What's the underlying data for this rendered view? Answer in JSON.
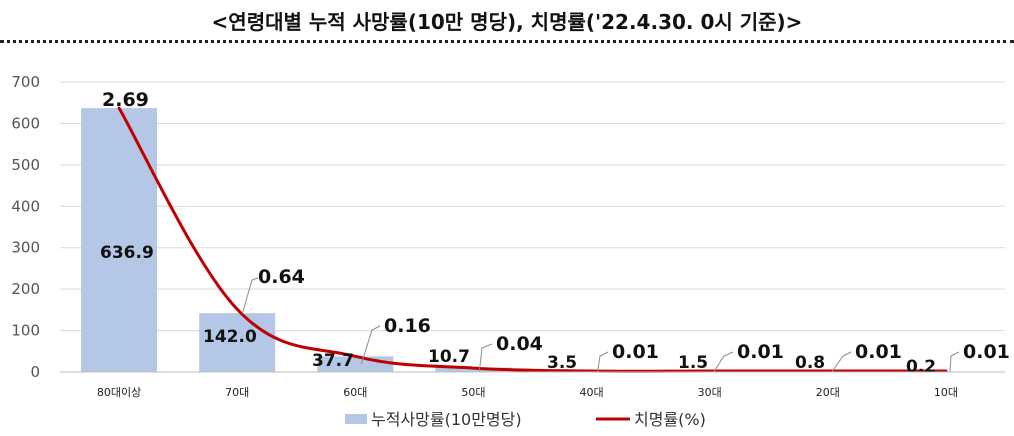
{
  "chart_data": {
    "type": "bar",
    "title": "<연령대별 누적 사망률(10만 명당), 치명률('22.4.30. 0시 기준)>",
    "categories": [
      "80대이상",
      "70대",
      "60대",
      "50대",
      "40대",
      "30대",
      "20대",
      "10대"
    ],
    "series": [
      {
        "name": "누적사망률(10만명당)",
        "type": "bar",
        "values": [
          636.9,
          142.0,
          37.7,
          10.7,
          3.5,
          1.5,
          0.8,
          0.2
        ],
        "labels": [
          "636.9",
          "142.0",
          "37.7",
          "10.7",
          "3.5",
          "1.5",
          "0.8",
          "0.2"
        ],
        "color": "#b4c7e7"
      },
      {
        "name": "치명률(%)",
        "type": "line",
        "values": [
          2.69,
          0.64,
          0.16,
          0.04,
          0.01,
          0.01,
          0.01,
          0.01
        ],
        "labels": [
          "2.69",
          "0.64",
          "0.16",
          "0.04",
          "0.01",
          "0.01",
          "0.01",
          "0.01"
        ],
        "color": "#c00000"
      }
    ],
    "ylim": [
      0,
      700
    ],
    "yticks": [
      "0",
      "100",
      "200",
      "300",
      "400",
      "500",
      "600",
      "700"
    ],
    "grid": true,
    "legend": "bottom"
  }
}
